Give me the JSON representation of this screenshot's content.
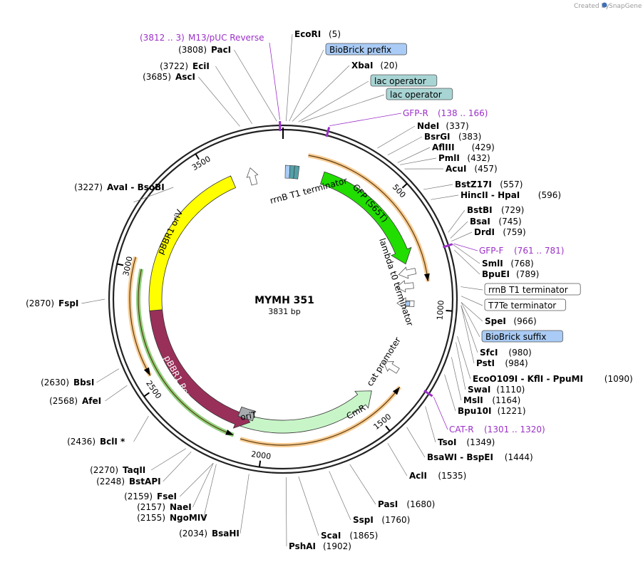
{
  "title": "MYMH 351",
  "length_label": "3831 bp",
  "credit": {
    "prefix": "Created by",
    "brand": "SnapGene"
  },
  "colors": {
    "primer": "#9b30c8",
    "gfp": "#22dd00",
    "ori": "#ffff00",
    "rep": "#99305a",
    "cmr": "#c8f5c8",
    "orit": "#a8acb0",
    "biobrick": "#a9cbf5",
    "lac": "#a8d4d4",
    "orf_orange": "#f2a33a",
    "orf_green": "#33aa11"
  },
  "ticks": [
    {
      "label": "500",
      "angle": 47
    },
    {
      "label": "1000",
      "angle": 94
    },
    {
      "label": "1500",
      "angle": 141
    },
    {
      "label": "2000",
      "angle": 188
    },
    {
      "label": "2500",
      "angle": 235
    },
    {
      "label": "3000",
      "angle": 282
    },
    {
      "label": "3500",
      "angle": 329
    }
  ],
  "features": [
    {
      "label": "GFP (S65T)",
      "kind": "arrow",
      "angle1": 18,
      "angle2": 74,
      "color": "#22dd00"
    },
    {
      "label": "CmR",
      "kind": "arrow_rev",
      "angle1": 136,
      "angle2": 200,
      "color": "#c8f5c8"
    },
    {
      "label": "pBBR1 Rep",
      "kind": "arrow_rev",
      "angle1": 195,
      "angle2": 265,
      "color": "#99305a",
      "text_color": "#ffffff"
    },
    {
      "label": "pBBR1 oriV",
      "kind": "block",
      "angle1": 265,
      "angle2": 337,
      "color": "#ffff00"
    },
    {
      "label": "oriT",
      "kind": "box",
      "angle1": 194,
      "angle2": 201,
      "color": "#a8acb0"
    },
    {
      "label": "rrnB T1 terminator",
      "kind": "arrow_rev_small",
      "angle1": 341,
      "angle2": 351,
      "color": "#ffffff"
    },
    {
      "label": "lambda t0 terminator",
      "kind": "small",
      "angle1": 75,
      "angle2": 82,
      "color": "#ffffff"
    },
    {
      "label": "cat promoter",
      "kind": "small",
      "angle1": 118,
      "angle2": 126,
      "color": "#ffffff"
    }
  ],
  "orfs": [
    {
      "angle1": 10,
      "angle2": 83,
      "color": "#f2a33a",
      "dir": "cw"
    },
    {
      "angle1": 127,
      "angle2": 197,
      "color": "#f2a33a",
      "dir": "ccw"
    },
    {
      "angle1": 240,
      "angle2": 286,
      "color": "#f2a33a",
      "dir": "ccw"
    },
    {
      "angle1": 200,
      "angle2": 282,
      "color": "#33aa11",
      "dir": "ccw"
    }
  ],
  "primer_sites": [
    {
      "label_text": "M13/pUC Reverse",
      "range": "(3812 .. 3)",
      "angle": 359
    },
    {
      "label_text": "GFP-R",
      "range": "(138 .. 166)",
      "angle": 15
    },
    {
      "label_text": "GFP-F",
      "range": "(761 .. 781)",
      "angle": 72
    },
    {
      "label_text": "CAT-R",
      "range": "(1301 .. 1320)",
      "angle": 123
    }
  ],
  "labels_right": [
    {
      "name": "EcoRI",
      "pos": "(5)",
      "angle": 1
    },
    {
      "box": "BioBrick prefix",
      "angle": 2
    },
    {
      "name": "XbaI",
      "pos": "(20)",
      "angle": 3
    },
    {
      "box": "lac operator",
      "angle": 5
    },
    {
      "box": "lac operator",
      "angle": 6
    },
    {
      "name": "NdeI",
      "pos": "(337)",
      "angle": 32
    },
    {
      "name": "BsrGI",
      "pos": "(383)",
      "angle": 36
    },
    {
      "name": "AflIII",
      "pos": "(429)",
      "angle": 40
    },
    {
      "name": "PmlI",
      "pos": "(432)",
      "angle": 41
    },
    {
      "name": "AcuI",
      "pos": "(457)",
      "angle": 43
    },
    {
      "name": "BstZ17I",
      "pos": "(557)",
      "angle": 52
    },
    {
      "name": "HincII - HpaI",
      "pos": "(596)",
      "angle": 56
    },
    {
      "name": "BstBI",
      "pos": "(729)",
      "angle": 68
    },
    {
      "name": "BsaI",
      "pos": "(745)",
      "angle": 70
    },
    {
      "name": "DrdI",
      "pos": "(759)",
      "angle": 71
    },
    {
      "name": "SmlI",
      "pos": "(768)",
      "angle": 72
    },
    {
      "name": "BpuEI",
      "pos": "(789)",
      "angle": 74
    },
    {
      "box": "rrnB T1 terminator",
      "angle": 86
    },
    {
      "box": "T7Te terminator",
      "angle": 89
    },
    {
      "name": "SpeI",
      "pos": "(966)",
      "angle": 91
    },
    {
      "box": "BioBrick suffix",
      "angle": 91
    },
    {
      "name": "SfcI",
      "pos": "(980)",
      "angle": 92
    },
    {
      "name": "PstI",
      "pos": "(984)",
      "angle": 92
    },
    {
      "name": "EcoO109I - KflI - PpuMI",
      "pos": "(1090)",
      "angle": 102
    },
    {
      "name": "SwaI",
      "pos": "(1110)",
      "angle": 104
    },
    {
      "name": "MslI",
      "pos": "(1164)",
      "angle": 109
    },
    {
      "name": "Bpu10I",
      "pos": "(1221)",
      "angle": 115
    },
    {
      "name": "TsoI",
      "pos": "(1349)",
      "angle": 127
    },
    {
      "name": "BsaWI - BspEI",
      "pos": "(1444)",
      "angle": 136
    },
    {
      "name": "AclI",
      "pos": "(1535)",
      "angle": 144
    },
    {
      "name": "PasI",
      "pos": "(1680)",
      "angle": 158
    },
    {
      "name": "SspI",
      "pos": "(1760)",
      "angle": 165
    },
    {
      "name": "ScaI",
      "pos": "(1865)",
      "angle": 175
    },
    {
      "name": "PshAI",
      "pos": "(1902)",
      "angle": 179
    }
  ],
  "labels_left": [
    {
      "name": "PacI",
      "pos": "(3808)",
      "angle": 358
    },
    {
      "name": "EciI",
      "pos": "(3722)",
      "angle": 350
    },
    {
      "name": "AscI",
      "pos": "(3685)",
      "angle": 346
    },
    {
      "name": "AvaI - BsoBI",
      "pos": "(3227)",
      "angle": 303
    },
    {
      "name": "FspI",
      "pos": "(2870)",
      "angle": 270
    },
    {
      "name": "BbsI",
      "pos": "(2630)",
      "angle": 247
    },
    {
      "name": "AfeI",
      "pos": "(2568)",
      "angle": 241
    },
    {
      "name": "BclI *",
      "pos": "(2436)",
      "angle": 229
    },
    {
      "name": "TaqII",
      "pos": "(2270)",
      "angle": 213
    },
    {
      "name": "BstAPI",
      "pos": "(2248)",
      "angle": 211
    },
    {
      "name": "FseI",
      "pos": "(2159)",
      "angle": 203
    },
    {
      "name": "NaeI",
      "pos": "(2157)",
      "angle": 203
    },
    {
      "name": "NgoMIV",
      "pos": "(2155)",
      "angle": 202
    },
    {
      "name": "BsaHI",
      "pos": "(2034)",
      "angle": 191
    }
  ]
}
